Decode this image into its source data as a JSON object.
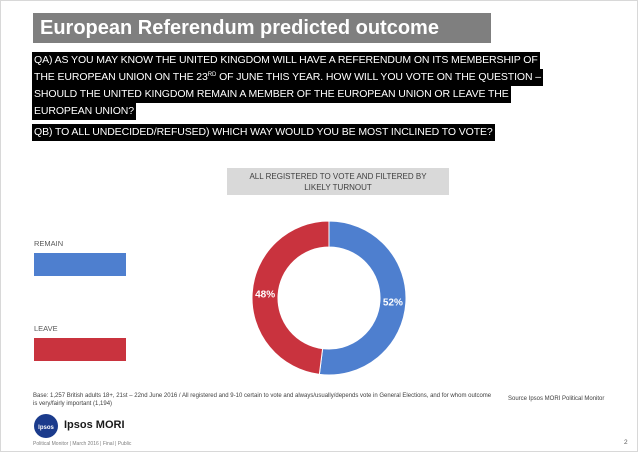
{
  "title": "European Referendum predicted outcome",
  "question_lines": [
    {
      "pre": "QA) AS YOU MAY KNOW THE UNITED KINGDOM WILL HAVE A REFERENDUM ON ITS MEMBERSHIP OF",
      "sup": "",
      "post": ""
    },
    {
      "pre": "THE EUROPEAN UNION ON THE 23",
      "sup": "RD",
      "post": " OF JUNE THIS YEAR. HOW WILL YOU VOTE ON THE QUESTION –"
    },
    {
      "pre": "SHOULD THE UNITED KINGDOM REMAIN A MEMBER OF THE EUROPEAN UNION OR LEAVE THE",
      "sup": "",
      "post": ""
    },
    {
      "pre": "EUROPEAN UNION?",
      "sup": "",
      "post": ""
    }
  ],
  "question_b": "QB) TO ALL UNDECIDED/REFUSED) WHICH WAY WOULD YOU BE MOST INCLINED TO VOTE?",
  "filter_label_line1": "ALL REGISTERED TO VOTE AND FILTERED BY",
  "filter_label_line2": "LIKELY TURNOUT",
  "legend": [
    {
      "label": "REMAIN",
      "color": "#4e7fcf"
    },
    {
      "label": "LEAVE",
      "color": "#c9333e"
    }
  ],
  "chart_data": {
    "type": "pie",
    "variant": "donut",
    "categories": [
      "REMAIN",
      "LEAVE"
    ],
    "values": [
      52,
      48
    ],
    "value_labels": [
      "52%",
      "48%"
    ],
    "colors": [
      "#4e7fcf",
      "#c9333e"
    ],
    "legend_placement": "left"
  },
  "base_note": "Base: 1,257 British adults 18+, 21st – 22nd June 2016 / All registered and 9-10 certain to vote and always/usually/depends vote in General Elections, and for whom outcome is very/fairly important (1,194)",
  "source_note": "Source Ipsos MORI Political Monitor",
  "logo_badge": "Ipsos",
  "logo_text": "Ipsos MORI",
  "footer": "Political Monitor | March 2016 | Final | Public",
  "page_number": "2"
}
